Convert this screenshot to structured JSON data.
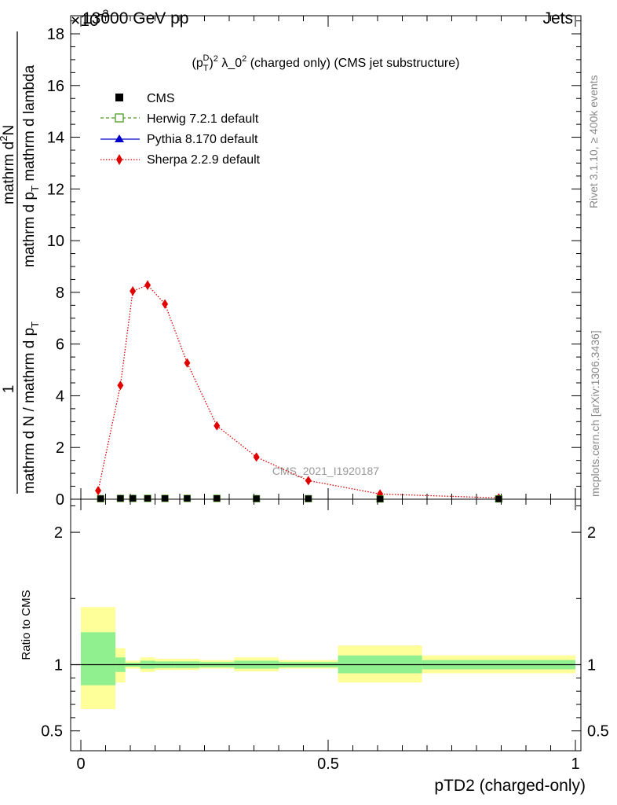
{
  "header": {
    "energy_label": "13000 GeV pp",
    "exponent_label": "×10",
    "process_label": "Jets"
  },
  "side_labels": {
    "rivet": "Rivet 3.1.10, ≥ 400k events",
    "mcplots": "mcplots.cern.ch [arXiv:1306.3436]"
  },
  "watermark": "CMS_2021_I1920187",
  "chart_data": [
    {
      "type": "line",
      "title": "(p_T^D)^2 λ_0^2 (charged only) (CMS jet substructure)",
      "title_parts": {
        "open": "(p",
        "sup": "D",
        "sub": "T",
        "close": ")",
        "sq": "2",
        "mid": " λ_0",
        "rest": " (charged only) (CMS jet substructure)"
      },
      "ylabel": "1 / mathrm d N / mathrm d p_T mathrm d N / mathrm d p_T mathrm d lambda",
      "ylabel_parts": {
        "num_left": "1",
        "den_left": "mathrm d N / mathrm d p",
        "den_left_sub": "T",
        "num_right": "mathrm d",
        "num_right_sup": "2",
        "num_right_tail": "N",
        "den_right_a": "mathrm d p",
        "den_right_sub": "T",
        "den_right_b": " mathrm d lambda"
      },
      "y_scale_exponent": -3,
      "xlim": [
        0,
        1
      ],
      "ylim": [
        0,
        0.0187
      ],
      "y_ticks": [
        0,
        0.002,
        0.004,
        0.006,
        0.008,
        0.01,
        0.012,
        0.014,
        0.016,
        0.018
      ],
      "y_tick_labels": [
        "0",
        "2",
        "4",
        "6",
        "8",
        "10",
        "12",
        "14",
        "16",
        "18"
      ],
      "legend_position": "top-left",
      "series": [
        {
          "name": "CMS",
          "color": "#000000",
          "marker": "square-filled",
          "x": [
            0.04,
            0.08,
            0.105,
            0.135,
            0.17,
            0.215,
            0.275,
            0.355,
            0.46,
            0.605,
            0.845
          ],
          "y": [
            2e-05,
            3e-05,
            3e-05,
            3e-05,
            3e-05,
            3e-05,
            3e-05,
            2e-05,
            2e-05,
            1e-05,
            1e-05
          ]
        },
        {
          "name": "Herwig 7.2.1 default",
          "color": "#4a9a1e",
          "marker": "square-open",
          "line": "dashed",
          "x": [
            0.04,
            0.08,
            0.105,
            0.135,
            0.17,
            0.215,
            0.275,
            0.355,
            0.46,
            0.605,
            0.845
          ],
          "y": [
            2e-05,
            3e-05,
            3e-05,
            3e-05,
            3e-05,
            3e-05,
            3e-05,
            2e-05,
            2e-05,
            1e-05,
            1e-05
          ]
        },
        {
          "name": "Pythia 8.170 default",
          "color": "#0000cc",
          "marker": "triangle",
          "line": "solid",
          "x": [
            0.04,
            0.08,
            0.105,
            0.135,
            0.17,
            0.215,
            0.275,
            0.355,
            0.46,
            0.605,
            0.845
          ],
          "y": [
            2e-05,
            3e-05,
            3e-05,
            3e-05,
            3e-05,
            3e-05,
            3e-05,
            2e-05,
            2e-05,
            1e-05,
            1e-05
          ]
        },
        {
          "name": "Sherpa 2.2.9 default",
          "color": "#e00000",
          "marker": "diamond",
          "line": "dotted",
          "x": [
            0.035,
            0.08,
            0.105,
            0.135,
            0.17,
            0.215,
            0.275,
            0.355,
            0.46,
            0.605,
            0.845
          ],
          "y": [
            0.00033,
            0.0044,
            0.00805,
            0.00828,
            0.00755,
            0.00527,
            0.00284,
            0.00163,
            0.00072,
            0.0002,
            5e-05
          ],
          "err": [
            5e-05,
            0.00015,
            0.00018,
            0.00018,
            0.00017,
            0.00013,
            8e-05,
            6e-05,
            4e-05,
            2e-05,
            1e-05
          ]
        }
      ]
    },
    {
      "type": "area",
      "ylabel": "Ratio to CMS",
      "xlabel": "pTD2 (charged-only)",
      "xlim": [
        0,
        1
      ],
      "ylim": [
        0.35,
        2.25
      ],
      "x_ticks": [
        0,
        0.5,
        1
      ],
      "x_tick_labels": [
        "0",
        "0.5",
        "1"
      ],
      "y_tick_labels": [
        "0.5",
        "1",
        "2"
      ],
      "y_ticks": [
        0.5,
        1,
        2
      ],
      "reference_line": 1,
      "bins": [
        {
          "lo": 0.0,
          "hi": 0.07,
          "inner": [
            0.845,
            1.245
          ],
          "outer": [
            0.665,
            1.435
          ]
        },
        {
          "lo": 0.07,
          "hi": 0.09,
          "inner": [
            0.945,
            1.055
          ],
          "outer": [
            0.865,
            1.125
          ]
        },
        {
          "lo": 0.09,
          "hi": 0.12,
          "inner": [
            0.985,
            1.015
          ],
          "outer": [
            0.97,
            1.03
          ]
        },
        {
          "lo": 0.12,
          "hi": 0.15,
          "inner": [
            0.97,
            1.03
          ],
          "outer": [
            0.945,
            1.055
          ]
        },
        {
          "lo": 0.15,
          "hi": 0.19,
          "inner": [
            0.975,
            1.025
          ],
          "outer": [
            0.96,
            1.045
          ]
        },
        {
          "lo": 0.19,
          "hi": 0.24,
          "inner": [
            0.975,
            1.025
          ],
          "outer": [
            0.96,
            1.045
          ]
        },
        {
          "lo": 0.24,
          "hi": 0.31,
          "inner": [
            0.98,
            1.02
          ],
          "outer": [
            0.97,
            1.035
          ]
        },
        {
          "lo": 0.31,
          "hi": 0.4,
          "inner": [
            0.97,
            1.03
          ],
          "outer": [
            0.95,
            1.055
          ]
        },
        {
          "lo": 0.4,
          "hi": 0.52,
          "inner": [
            0.98,
            1.02
          ],
          "outer": [
            0.97,
            1.035
          ]
        },
        {
          "lo": 0.52,
          "hi": 0.69,
          "inner": [
            0.935,
            1.07
          ],
          "outer": [
            0.865,
            1.145
          ]
        },
        {
          "lo": 0.69,
          "hi": 1.0,
          "inner": [
            0.965,
            1.035
          ],
          "outer": [
            0.935,
            1.07
          ]
        }
      ],
      "band_colors": {
        "inner": "#90f090",
        "outer": "#ffff99"
      }
    }
  ]
}
